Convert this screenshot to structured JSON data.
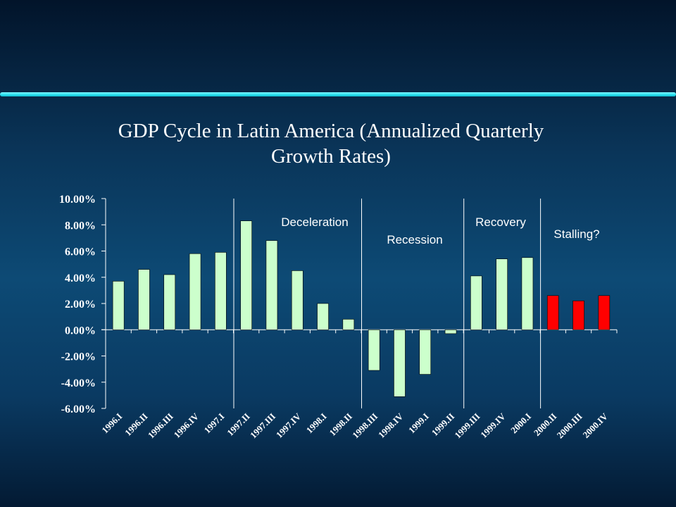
{
  "chart_data": {
    "type": "bar",
    "title_lines": [
      "GDP Cycle in Latin America (Annualized Quarterly",
      "Growth Rates)"
    ],
    "categories": [
      "1996.I",
      "1996.II",
      "1996.III",
      "1996.IV",
      "1997.I",
      "1997.II",
      "1997.III",
      "1997.IV",
      "1998.I",
      "1998.II",
      "1998.III",
      "1998.IV",
      "1999.I",
      "1999.II",
      "1999.III",
      "1999.IV",
      "2000.I",
      "2000.II",
      "2000.III",
      "2000.IV"
    ],
    "values": [
      3.7,
      4.6,
      4.2,
      5.8,
      5.9,
      8.3,
      6.8,
      4.5,
      2.0,
      0.8,
      -3.1,
      -5.1,
      -3.4,
      -0.3,
      4.1,
      5.4,
      5.5,
      2.6,
      2.2,
      2.6
    ],
    "bar_colors": [
      "#ccffcc",
      "#ccffcc",
      "#ccffcc",
      "#ccffcc",
      "#ccffcc",
      "#ccffcc",
      "#ccffcc",
      "#ccffcc",
      "#ccffcc",
      "#ccffcc",
      "#ccffcc",
      "#ccffcc",
      "#ccffcc",
      "#ccffcc",
      "#ccffcc",
      "#ccffcc",
      "#ccffcc",
      "#ff0000",
      "#ff0000",
      "#ff0000"
    ],
    "yticks": [
      "10.00%",
      "8.00%",
      "6.00%",
      "4.00%",
      "2.00%",
      "0.00%",
      "-2.00%",
      "-4.00%",
      "-6.00%"
    ],
    "ylim": [
      -6,
      10
    ],
    "phase_dividers_after_index": [
      4,
      9,
      13,
      16
    ],
    "annotations": [
      {
        "text": "Deceleration",
        "phase": "deceleration"
      },
      {
        "text": "Recession",
        "phase": "recession"
      },
      {
        "text": "Recovery",
        "phase": "recovery"
      },
      {
        "text": "Stalling?",
        "phase": "stalling"
      }
    ],
    "xlabel": "",
    "ylabel": "",
    "grid": false,
    "legend": "none"
  },
  "colors": {
    "axis": "#ffffff",
    "text": "#ffffff",
    "bar_outline": "#000000",
    "accent_rule": "#2fe3f2"
  }
}
